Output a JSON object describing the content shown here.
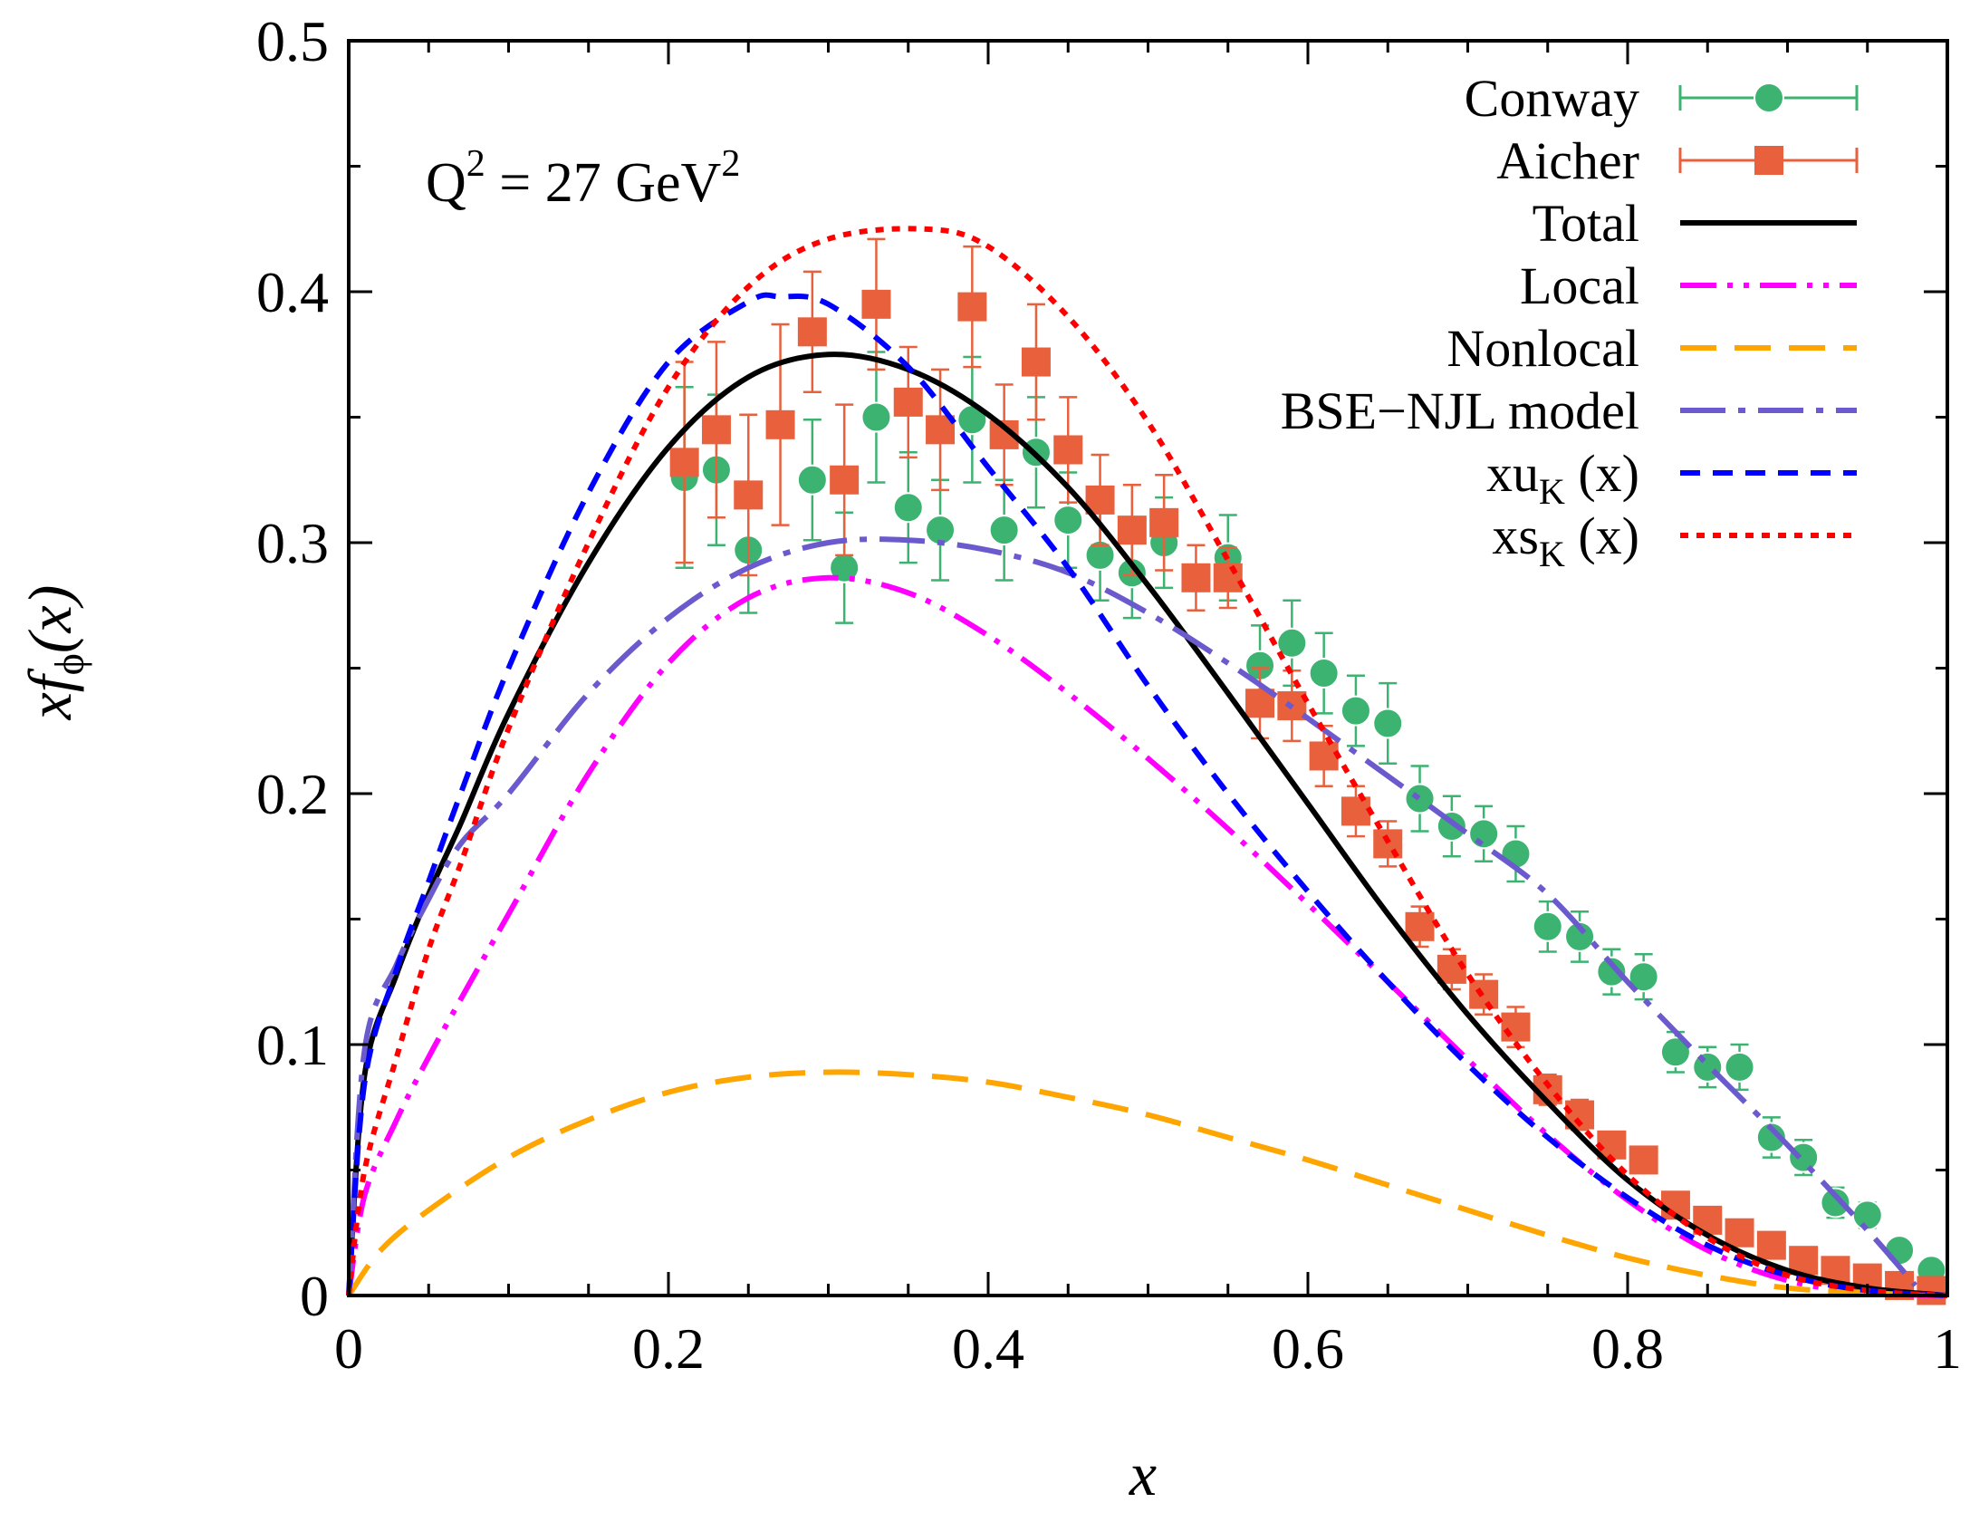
{
  "chart_data": {
    "type": "line",
    "title": "",
    "xlabel": "x",
    "ylabel_main": "xf",
    "ylabel_sub": "ϕ",
    "ylabel_tail": "(x)",
    "xlim": [
      0,
      1
    ],
    "ylim": [
      0,
      0.5
    ],
    "xticks": [
      0,
      0.2,
      0.4,
      0.6,
      0.8,
      1
    ],
    "xtick_labels": [
      "0",
      "0.2",
      "0.4",
      "0.6",
      "0.8",
      "1"
    ],
    "yticks": [
      0,
      0.1,
      0.2,
      0.3,
      0.4,
      0.5
    ],
    "ytick_labels": [
      "0",
      "0.1",
      "0.2",
      "0.3",
      "0.4",
      "0.5"
    ],
    "annotation": {
      "base": "Q",
      "exp1": "2",
      "middle": " = 27 GeV",
      "exp2": "2"
    },
    "legend_position": "top-right",
    "legend": [
      {
        "id": "conway",
        "label": "Conway",
        "color": "#3cb371",
        "style": "points-circle"
      },
      {
        "id": "aicher",
        "label": "Aicher",
        "color": "#e8603c",
        "style": "points-square"
      },
      {
        "id": "total",
        "label": "Total",
        "color": "#000000",
        "style": "solid"
      },
      {
        "id": "local",
        "label": "Local",
        "color": "#ff00ff",
        "style": "dash-dot-dot"
      },
      {
        "id": "nonlocal",
        "label": "Nonlocal",
        "color": "#ffa500",
        "style": "long-dash"
      },
      {
        "id": "bse",
        "label": "BSE−NJL model",
        "color": "#6a5acd",
        "style": "dash-dot"
      },
      {
        "id": "xu",
        "label_main": "xu",
        "label_sub": "K",
        "label_tail": " (x)",
        "color": "#0000ff",
        "style": "dash"
      },
      {
        "id": "xs",
        "label_main": "xs",
        "label_sub": "K",
        "label_tail": " (x)",
        "color": "#ff0000",
        "style": "dot"
      }
    ],
    "series": [
      {
        "name": "Conway",
        "kind": "points",
        "x": [
          0.21,
          0.23,
          0.25,
          0.29,
          0.31,
          0.33,
          0.35,
          0.37,
          0.39,
          0.41,
          0.43,
          0.45,
          0.47,
          0.49,
          0.51,
          0.55,
          0.57,
          0.59,
          0.61,
          0.63,
          0.65,
          0.67,
          0.69,
          0.71,
          0.73,
          0.75,
          0.77,
          0.79,
          0.81,
          0.83,
          0.85,
          0.87,
          0.89,
          0.91,
          0.93,
          0.95,
          0.97,
          0.99
        ],
        "y": [
          0.326,
          0.329,
          0.297,
          0.325,
          0.29,
          0.35,
          0.314,
          0.305,
          0.349,
          0.305,
          0.336,
          0.309,
          0.295,
          0.288,
          0.3,
          0.294,
          0.251,
          0.26,
          0.248,
          0.233,
          0.228,
          0.198,
          0.187,
          0.184,
          0.176,
          0.147,
          0.143,
          0.129,
          0.127,
          0.097,
          0.091,
          0.091,
          0.063,
          0.055,
          0.037,
          0.032,
          0.018,
          0.01
        ],
        "err": [
          0.036,
          0.03,
          0.025,
          0.024,
          0.022,
          0.026,
          0.022,
          0.02,
          0.025,
          0.02,
          0.022,
          0.019,
          0.018,
          0.018,
          0.018,
          0.017,
          0.016,
          0.017,
          0.016,
          0.014,
          0.016,
          0.013,
          0.012,
          0.011,
          0.011,
          0.01,
          0.01,
          0.009,
          0.009,
          0.008,
          0.008,
          0.009,
          0.008,
          0.007,
          0.006,
          0.005,
          0.004,
          0.004
        ]
      },
      {
        "name": "Aicher",
        "kind": "points",
        "x": [
          0.21,
          0.23,
          0.25,
          0.27,
          0.29,
          0.31,
          0.33,
          0.35,
          0.37,
          0.39,
          0.41,
          0.43,
          0.45,
          0.47,
          0.49,
          0.51,
          0.53,
          0.55,
          0.57,
          0.59,
          0.61,
          0.63,
          0.65,
          0.67,
          0.69,
          0.71,
          0.73,
          0.75,
          0.77,
          0.79,
          0.81,
          0.83,
          0.85,
          0.87,
          0.89,
          0.91,
          0.93,
          0.95,
          0.97,
          0.99
        ],
        "y": [
          0.332,
          0.345,
          0.319,
          0.347,
          0.384,
          0.325,
          0.395,
          0.356,
          0.345,
          0.394,
          0.343,
          0.372,
          0.337,
          0.317,
          0.305,
          0.308,
          0.286,
          0.286,
          0.236,
          0.235,
          0.215,
          0.193,
          0.18,
          0.147,
          0.13,
          0.12,
          0.107,
          0.082,
          0.072,
          0.06,
          0.054,
          0.036,
          0.03,
          0.025,
          0.02,
          0.014,
          0.01,
          0.007,
          0.004,
          0.002
        ],
        "err": [
          0.04,
          0.035,
          0.032,
          0.04,
          0.024,
          0.03,
          0.026,
          0.022,
          0.024,
          0.024,
          0.02,
          0.023,
          0.021,
          0.018,
          0.018,
          0.019,
          0.013,
          0.012,
          0.014,
          0.014,
          0.012,
          0.01,
          0.009,
          0.008,
          0.008,
          0.008,
          0.008,
          0.006,
          0.006,
          0.005,
          0.004,
          0.004,
          0.003,
          0.003,
          0.003,
          0.002,
          0.002,
          0.002,
          0.001,
          0.001
        ]
      },
      {
        "name": "Total",
        "kind": "curve",
        "x": [
          0.0,
          0.01,
          0.03,
          0.05,
          0.07,
          0.1,
          0.15,
          0.2,
          0.25,
          0.3,
          0.35,
          0.4,
          0.45,
          0.5,
          0.55,
          0.6,
          0.65,
          0.7,
          0.75,
          0.8,
          0.85,
          0.9,
          0.95,
          1.0
        ],
        "y": [
          0.0,
          0.088,
          0.128,
          0.16,
          0.188,
          0.232,
          0.292,
          0.338,
          0.366,
          0.375,
          0.369,
          0.351,
          0.322,
          0.283,
          0.24,
          0.196,
          0.152,
          0.112,
          0.077,
          0.046,
          0.024,
          0.01,
          0.003,
          0.0
        ]
      },
      {
        "name": "Local",
        "kind": "curve",
        "x": [
          0.0,
          0.01,
          0.03,
          0.05,
          0.07,
          0.1,
          0.15,
          0.2,
          0.25,
          0.3,
          0.35,
          0.4,
          0.45,
          0.5,
          0.55,
          0.6,
          0.65,
          0.7,
          0.75,
          0.8,
          0.85,
          0.9,
          0.95,
          1.0
        ],
        "y": [
          0.0,
          0.04,
          0.07,
          0.095,
          0.118,
          0.152,
          0.208,
          0.252,
          0.278,
          0.286,
          0.28,
          0.263,
          0.24,
          0.214,
          0.186,
          0.156,
          0.125,
          0.094,
          0.064,
          0.038,
          0.018,
          0.006,
          0.001,
          0.0
        ]
      },
      {
        "name": "Nonlocal",
        "kind": "curve",
        "x": [
          0.0,
          0.02,
          0.05,
          0.1,
          0.15,
          0.2,
          0.25,
          0.3,
          0.35,
          0.4,
          0.45,
          0.5,
          0.55,
          0.6,
          0.65,
          0.7,
          0.75,
          0.8,
          0.85,
          0.9,
          0.95,
          1.0
        ],
        "y": [
          0.0,
          0.018,
          0.034,
          0.055,
          0.07,
          0.081,
          0.087,
          0.089,
          0.088,
          0.085,
          0.079,
          0.072,
          0.063,
          0.054,
          0.044,
          0.034,
          0.024,
          0.015,
          0.008,
          0.003,
          0.001,
          0.0
        ]
      },
      {
        "name": "BSE−NJL model",
        "kind": "curve",
        "x": [
          0.0,
          0.01,
          0.03,
          0.05,
          0.07,
          0.1,
          0.15,
          0.2,
          0.25,
          0.3,
          0.35,
          0.4,
          0.45,
          0.5,
          0.55,
          0.6,
          0.65,
          0.7,
          0.75,
          0.8,
          0.85,
          0.9,
          0.95,
          0.98
        ],
        "y": [
          0.0,
          0.098,
          0.132,
          0.158,
          0.18,
          0.2,
          0.24,
          0.27,
          0.29,
          0.3,
          0.301,
          0.297,
          0.288,
          0.272,
          0.252,
          0.23,
          0.207,
          0.184,
          0.16,
          0.125,
          0.092,
          0.06,
          0.026,
          0.004
        ]
      },
      {
        "name": "xu_K (x)",
        "kind": "curve",
        "x": [
          0.0,
          0.01,
          0.03,
          0.05,
          0.07,
          0.1,
          0.15,
          0.2,
          0.25,
          0.27,
          0.3,
          0.35,
          0.4,
          0.45,
          0.5,
          0.55,
          0.6,
          0.65,
          0.7,
          0.75,
          0.8,
          0.85,
          0.9,
          0.95,
          1.0
        ],
        "y": [
          0.0,
          0.085,
          0.13,
          0.165,
          0.2,
          0.25,
          0.32,
          0.372,
          0.396,
          0.398,
          0.395,
          0.37,
          0.33,
          0.29,
          0.243,
          0.2,
          0.161,
          0.125,
          0.092,
          0.063,
          0.039,
          0.02,
          0.008,
          0.002,
          0.0
        ]
      },
      {
        "name": "xs_K (x)",
        "kind": "curve",
        "x": [
          0.0,
          0.01,
          0.03,
          0.05,
          0.07,
          0.1,
          0.15,
          0.2,
          0.25,
          0.3,
          0.36,
          0.4,
          0.45,
          0.5,
          0.55,
          0.6,
          0.65,
          0.7,
          0.75,
          0.8,
          0.85,
          0.9,
          0.95,
          1.0
        ],
        "y": [
          0.0,
          0.05,
          0.095,
          0.138,
          0.172,
          0.226,
          0.3,
          0.362,
          0.402,
          0.421,
          0.425,
          0.418,
          0.39,
          0.348,
          0.293,
          0.236,
          0.181,
          0.128,
          0.084,
          0.048,
          0.023,
          0.008,
          0.002,
          0.0
        ]
      }
    ]
  }
}
